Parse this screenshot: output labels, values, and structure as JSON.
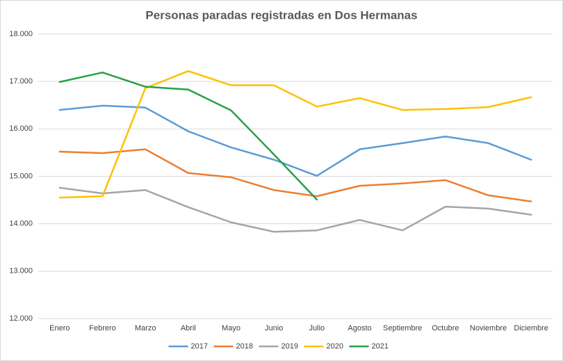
{
  "chart_data": {
    "type": "line",
    "title": "Personas paradas registradas en Dos Hermanas",
    "categories": [
      "Enero",
      "Febrero",
      "Marzo",
      "Abril",
      "Mayo",
      "Junio",
      "Julio",
      "Agosto",
      "Septiembre",
      "Octubre",
      "Noviembre",
      "Diciembre"
    ],
    "series": [
      {
        "name": "2017",
        "color": "#5b9bd5",
        "values": [
          16400,
          16490,
          16450,
          15950,
          15610,
          15350,
          15010,
          15570,
          15700,
          15840,
          15700,
          15350
        ]
      },
      {
        "name": "2018",
        "color": "#ed7d31",
        "values": [
          15520,
          15490,
          15570,
          15070,
          14980,
          14710,
          14580,
          14800,
          14850,
          14920,
          14600,
          14470
        ]
      },
      {
        "name": "2019",
        "color": "#a5a5a5",
        "values": [
          14760,
          14640,
          14710,
          14350,
          14030,
          13830,
          13860,
          14080,
          13860,
          14360,
          14320,
          14190
        ]
      },
      {
        "name": "2020",
        "color": "#ffc000",
        "values": [
          14550,
          14580,
          16860,
          17220,
          16920,
          16920,
          16470,
          16650,
          16400,
          16420,
          16460,
          16670
        ]
      },
      {
        "name": "2021",
        "color": "#27a048",
        "values": [
          16990,
          17190,
          16890,
          16830,
          16390,
          15460,
          14510,
          null,
          null,
          null,
          null,
          null
        ]
      }
    ],
    "ylim": [
      12000,
      18000
    ],
    "yticks": [
      {
        "value": 12000,
        "label": "12.000"
      },
      {
        "value": 13000,
        "label": "13.000"
      },
      {
        "value": 14000,
        "label": "14.000"
      },
      {
        "value": 15000,
        "label": "15.000"
      },
      {
        "value": 16000,
        "label": "16.000"
      },
      {
        "value": 17000,
        "label": "17.000"
      },
      {
        "value": 18000,
        "label": "18.000"
      }
    ],
    "grid": true,
    "legend": "bottom"
  }
}
